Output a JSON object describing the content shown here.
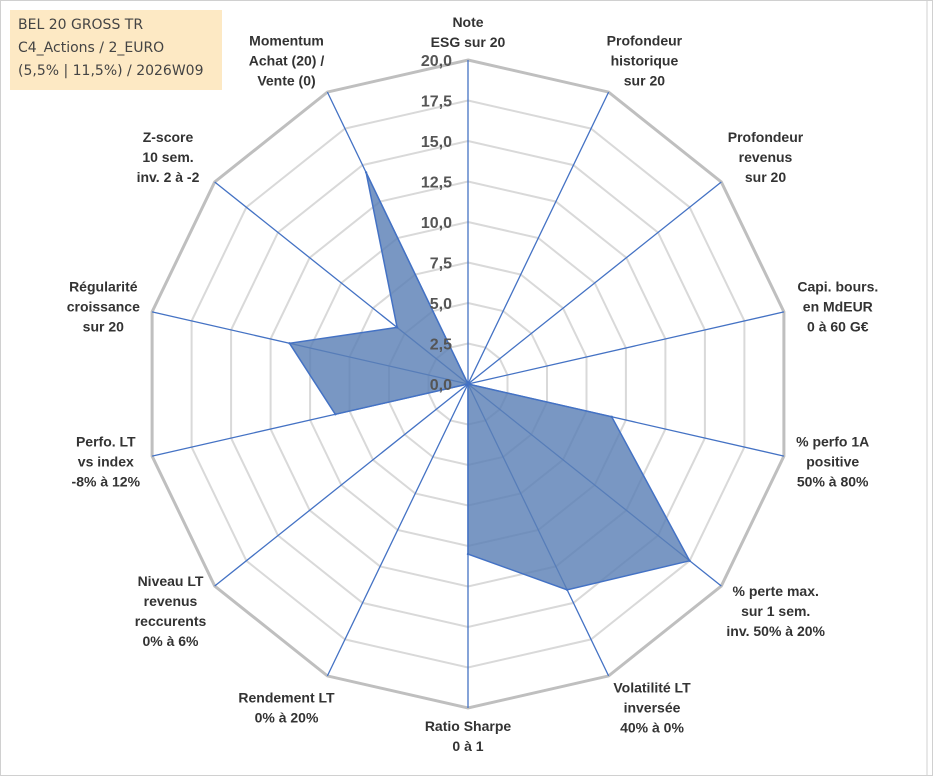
{
  "title_box": {
    "line1": "BEL 20 GROSS TR",
    "line2": "C4_Actions / 2_EURO",
    "line3": "(5,5% | 11,5%) / 2026W09",
    "background": "#fde9c4"
  },
  "chart_data": {
    "type": "radar",
    "title": "BEL 20 GROSS TR",
    "axis_range": [
      0,
      20
    ],
    "tick_values": [
      0,
      2.5,
      5,
      7.5,
      10,
      12.5,
      15,
      17.5,
      20
    ],
    "tick_labels": [
      "0,0",
      "2,5",
      "5,0",
      "7,5",
      "10,0",
      "12,5",
      "15,0",
      "17,5",
      "20,0"
    ],
    "axes": [
      {
        "lines": [
          "Note",
          "ESG sur 20"
        ]
      },
      {
        "lines": [
          "Profondeur",
          "historique",
          "sur 20"
        ]
      },
      {
        "lines": [
          "Profondeur",
          "revenus",
          "sur 20"
        ]
      },
      {
        "lines": [
          "Capi. bours.",
          "en MdEUR",
          "0 à 60 G€"
        ]
      },
      {
        "lines": [
          "% perfo 1A",
          "positive",
          "50% à 80%"
        ]
      },
      {
        "lines": [
          "% perte max.",
          "sur 1 sem.",
          "inv. 50% à 20%"
        ]
      },
      {
        "lines": [
          "Volatilité LT",
          "inversée",
          "40% à 0%"
        ]
      },
      {
        "lines": [
          "Ratio Sharpe",
          "0 à 1"
        ]
      },
      {
        "lines": [
          "Rendement LT",
          "0% à 20%"
        ]
      },
      {
        "lines": [
          "Niveau LT",
          "revenus",
          "reccurents",
          "0% à 6%"
        ]
      },
      {
        "lines": [
          "Perfo. LT",
          "vs index",
          "-8% à 12%"
        ]
      },
      {
        "lines": [
          "Régularité",
          "croissance",
          "sur 20"
        ]
      },
      {
        "lines": [
          "Z-score",
          "10 sem.",
          "inv. 2 à -2"
        ]
      },
      {
        "lines": [
          "Momentum",
          "Achat (20) /",
          "Vente (0)"
        ]
      }
    ],
    "series": [
      {
        "name": "BEL 20 GROSS TR",
        "values": [
          0,
          0,
          0,
          0,
          9.1,
          17.5,
          14.1,
          10.5,
          0,
          0,
          8.4,
          11.3,
          5.6,
          14.5
        ]
      }
    ],
    "colors": {
      "fill": "#5b80b6",
      "stroke": "#4472c4",
      "spoke": "#4472c4",
      "grid_outer": "#bfbfbf",
      "grid_inner": "#d9d9d9"
    },
    "grid": true
  }
}
